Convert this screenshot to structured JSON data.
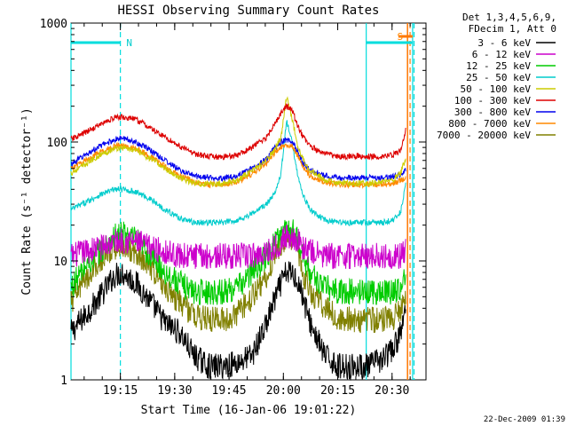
{
  "chart_data": {
    "type": "line",
    "title": "HESSI Observing Summary Count Rates",
    "xlabel": "Start Time (16-Jan-06 19:01:22)",
    "ylabel": "Count Rate (s⁻¹ detector⁻¹)",
    "yscale": "log",
    "ylim": [
      1,
      1000
    ],
    "yticks": [
      {
        "value": 1,
        "label": "1"
      },
      {
        "value": 10,
        "label": "10"
      },
      {
        "value": 100,
        "label": "100"
      },
      {
        "value": 1000,
        "label": "1000"
      }
    ],
    "xlim_minutes": [
      0,
      98
    ],
    "xticks": [
      {
        "value": 13.63,
        "label": "19:15"
      },
      {
        "value": 28.63,
        "label": "19:30"
      },
      {
        "value": 43.63,
        "label": "19:45"
      },
      {
        "value": 58.63,
        "label": "20:00"
      },
      {
        "value": 73.63,
        "label": "20:15"
      },
      {
        "value": 88.63,
        "label": "20:30"
      }
    ],
    "x_minutes": [
      0,
      4,
      8,
      12,
      14,
      18,
      22,
      26,
      30,
      34,
      38,
      42,
      46,
      50,
      54,
      56,
      58,
      59.5,
      61,
      62.5,
      64,
      66,
      70,
      74,
      78,
      82,
      86,
      89,
      91,
      92.5
    ],
    "legend_header": [
      "Det 1,3,4,5,6,9,",
      "FDecim 1, Att 0"
    ],
    "series": [
      {
        "name": "3 - 6 keV",
        "color": "#000000",
        "values": [
          2.5,
          3.5,
          5,
          7.5,
          8,
          6.5,
          4.5,
          3,
          2.5,
          1.6,
          1.3,
          1.3,
          1.4,
          1.6,
          3,
          4.5,
          6.5,
          8,
          8,
          7,
          5,
          3,
          1.6,
          1.3,
          1.3,
          1.3,
          1.5,
          1.8,
          2.5,
          4
        ]
      },
      {
        "name": "6 - 12 keV",
        "color": "#cc00cc",
        "values": [
          11,
          12,
          13,
          14.5,
          15,
          14.5,
          13,
          12,
          11,
          11,
          11,
          11,
          11,
          11,
          12,
          13,
          14.5,
          16,
          16,
          15,
          13,
          12,
          11,
          11,
          11,
          11,
          11,
          11,
          11,
          12
        ]
      },
      {
        "name": "12 - 25 keV",
        "color": "#00cc00",
        "values": [
          6,
          9,
          12,
          16,
          17,
          15,
          11,
          8,
          6.5,
          5.5,
          5.5,
          5.5,
          6,
          8,
          11,
          14,
          17,
          19,
          18,
          15,
          11,
          8,
          6,
          5.5,
          5.5,
          5.5,
          5.5,
          5.5,
          6,
          8
        ]
      },
      {
        "name": "25 - 50 keV",
        "color": "#00cccc",
        "values": [
          27,
          31,
          36,
          40,
          40,
          38,
          33,
          27,
          23,
          21,
          21,
          21,
          22,
          25,
          30,
          36,
          55,
          150,
          100,
          55,
          36,
          27,
          22,
          21,
          21,
          21,
          21,
          22,
          26,
          45
        ]
      },
      {
        "name": "50 - 100 keV",
        "color": "#cccc00",
        "values": [
          55,
          65,
          78,
          88,
          90,
          85,
          72,
          60,
          50,
          45,
          44,
          45,
          48,
          58,
          70,
          85,
          110,
          240,
          160,
          95,
          72,
          58,
          48,
          45,
          45,
          45,
          46,
          48,
          55,
          75
        ]
      },
      {
        "name": "100 - 300 keV",
        "color": "#dd0000",
        "values": [
          105,
          120,
          140,
          160,
          162,
          155,
          130,
          110,
          92,
          80,
          75,
          75,
          78,
          90,
          110,
          140,
          175,
          200,
          185,
          140,
          110,
          92,
          80,
          76,
          76,
          76,
          76,
          78,
          85,
          130
        ]
      },
      {
        "name": "300 - 800 keV",
        "color": "#0000ee",
        "values": [
          65,
          78,
          92,
          105,
          108,
          100,
          85,
          70,
          58,
          52,
          50,
          50,
          52,
          60,
          72,
          88,
          100,
          105,
          100,
          85,
          68,
          58,
          52,
          50,
          50,
          50,
          50,
          51,
          53,
          58
        ]
      },
      {
        "name": "800 - 7000 keV",
        "color": "#ff8800",
        "values": [
          60,
          70,
          82,
          92,
          94,
          88,
          75,
          62,
          52,
          46,
          44,
          44,
          46,
          54,
          66,
          80,
          92,
          96,
          92,
          78,
          62,
          52,
          46,
          44,
          44,
          44,
          44,
          45,
          47,
          50
        ]
      },
      {
        "name": "7000 - 20000 keV",
        "color": "#808000",
        "values": [
          4.5,
          7,
          10,
          13,
          13.5,
          12,
          9,
          6,
          4.5,
          3.5,
          3.2,
          3.2,
          3.6,
          5,
          7.5,
          11,
          14,
          16,
          15,
          12,
          8,
          5.5,
          4,
          3.3,
          3.2,
          3.2,
          3.2,
          3.3,
          3.8,
          5
        ]
      }
    ],
    "annotations": [
      {
        "text": "N",
        "x_minute": 13.63,
        "color": "#00cccc"
      },
      {
        "text": "S",
        "x_minute": 92.8,
        "color": "#ff8800"
      }
    ],
    "night_bar_minutes": [
      0,
      13.63
    ],
    "saa_bar_minutes": [
      81.5,
      94.3
    ],
    "vlines_cyan_solid": [
      0,
      81.5,
      94.3
    ],
    "vlines_cyan_dashed": [
      13.63,
      94.7
    ],
    "vlines_orange_solid": [
      92.9
    ],
    "vlines_orange_dashed": [
      93.6
    ],
    "grid": false,
    "legend_position": "right"
  },
  "footer_timestamp": "22-Dec-2009 01:39"
}
